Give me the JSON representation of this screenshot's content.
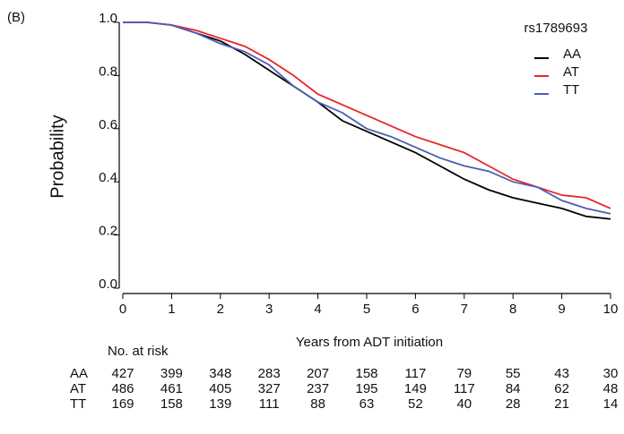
{
  "chart_data": {
    "type": "line",
    "panel_label": "(B)",
    "ylabel": "Probability",
    "xlabel": "Years from ADT initiation",
    "legend_title": "rs1789693",
    "legend": "upper right",
    "xlim": [
      0,
      10
    ],
    "xticks": [
      0,
      1,
      2,
      3,
      4,
      5,
      6,
      7,
      8,
      9,
      10
    ],
    "ylim": [
      0,
      1
    ],
    "yticks": [
      {
        "value": 0,
        "label": "0.0"
      },
      0.2,
      0.4,
      0.6,
      0.8,
      {
        "value": 1,
        "label": "1.0"
      }
    ],
    "x": [
      0,
      0.5,
      1,
      1.5,
      2,
      2.5,
      3,
      3.5,
      4,
      4.5,
      5,
      5.5,
      6,
      6.5,
      7,
      7.5,
      8,
      8.5,
      9,
      9.5,
      10
    ],
    "series": [
      {
        "name": "AA",
        "color": "#000000",
        "values": [
          1.0,
          1.0,
          0.99,
          0.96,
          0.93,
          0.88,
          0.82,
          0.76,
          0.7,
          0.63,
          0.59,
          0.55,
          0.51,
          0.46,
          0.41,
          0.37,
          0.34,
          0.32,
          0.3,
          0.27,
          0.26
        ]
      },
      {
        "name": "AT",
        "color": "#e8262a",
        "values": [
          1.0,
          1.0,
          0.99,
          0.97,
          0.94,
          0.91,
          0.86,
          0.8,
          0.73,
          0.69,
          0.65,
          0.61,
          0.57,
          0.54,
          0.51,
          0.46,
          0.41,
          0.38,
          0.35,
          0.34,
          0.3
        ]
      },
      {
        "name": "TT",
        "color": "#4a5fb5",
        "values": [
          1.0,
          1.0,
          0.99,
          0.96,
          0.92,
          0.89,
          0.84,
          0.76,
          0.7,
          0.66,
          0.6,
          0.57,
          0.53,
          0.49,
          0.46,
          0.44,
          0.4,
          0.38,
          0.33,
          0.3,
          0.28
        ]
      }
    ],
    "risk_table": {
      "title": "No. at risk",
      "rows": [
        {
          "label": "AA",
          "values": [
            427,
            399,
            348,
            283,
            207,
            158,
            117,
            79,
            55,
            43,
            30
          ]
        },
        {
          "label": "AT",
          "values": [
            486,
            461,
            405,
            327,
            237,
            195,
            149,
            117,
            84,
            62,
            48
          ]
        },
        {
          "label": "TT",
          "values": [
            169,
            158,
            139,
            111,
            88,
            63,
            52,
            40,
            28,
            21,
            14
          ]
        }
      ]
    }
  }
}
